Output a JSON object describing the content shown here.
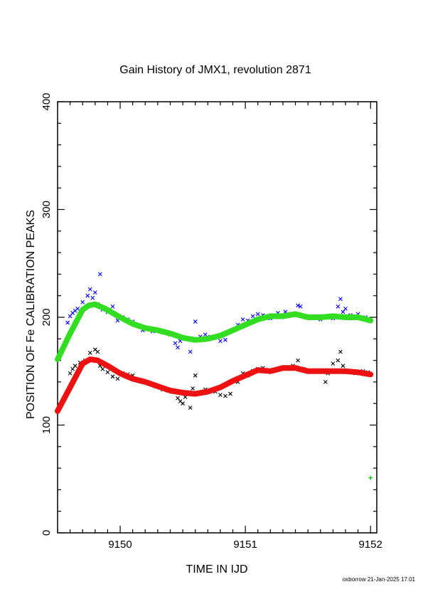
{
  "chart_data": {
    "type": "scatter",
    "title": "Gain History of JMX1, revolution 2871",
    "xlabel": "TIME IN IJD",
    "ylabel": "POSITION OF Fe CALIBRATION PEAKS",
    "xlim": [
      9149.5,
      9152.05
    ],
    "ylim": [
      0,
      400
    ],
    "x_ticks": [
      "9150",
      "9151",
      "9152"
    ],
    "y_ticks": [
      "0",
      "100",
      "200",
      "300",
      "400"
    ],
    "grid": false,
    "footer": "oxborrow 21-Jan-2025 17:01",
    "series": [
      {
        "style": "crosses",
        "color": "#0000ff",
        "points": [
          [
            9149.58,
            195
          ],
          [
            9149.6,
            201
          ],
          [
            9149.62,
            204
          ],
          [
            9149.64,
            206
          ],
          [
            9149.66,
            208
          ],
          [
            9149.7,
            214
          ],
          [
            9149.74,
            220
          ],
          [
            9149.76,
            226
          ],
          [
            9149.78,
            218
          ],
          [
            9149.8,
            223
          ],
          [
            9149.82,
            212
          ],
          [
            9149.84,
            240
          ],
          [
            9149.86,
            207
          ],
          [
            9149.9,
            205
          ],
          [
            9149.94,
            210
          ],
          [
            9149.98,
            197
          ],
          [
            9150.02,
            200
          ],
          [
            9150.06,
            198
          ],
          [
            9150.1,
            196
          ],
          [
            9150.14,
            192
          ],
          [
            9150.18,
            188
          ],
          [
            9150.22,
            190
          ],
          [
            9150.26,
            187
          ],
          [
            9150.3,
            188
          ],
          [
            9150.34,
            186
          ],
          [
            9150.4,
            184
          ],
          [
            9150.44,
            176
          ],
          [
            9150.46,
            172
          ],
          [
            9150.48,
            178
          ],
          [
            9150.52,
            180
          ],
          [
            9150.56,
            168
          ],
          [
            9150.6,
            196
          ],
          [
            9150.64,
            182
          ],
          [
            9150.68,
            184
          ],
          [
            9150.72,
            182
          ],
          [
            9150.76,
            182
          ],
          [
            9150.8,
            178
          ],
          [
            9150.84,
            179
          ],
          [
            9150.9,
            188
          ],
          [
            9150.94,
            193
          ],
          [
            9150.98,
            198
          ],
          [
            9151.02,
            197
          ],
          [
            9151.06,
            201
          ],
          [
            9151.1,
            203
          ],
          [
            9151.14,
            202
          ],
          [
            9151.2,
            199
          ],
          [
            9151.26,
            204
          ],
          [
            9151.32,
            205
          ],
          [
            9151.38,
            203
          ],
          [
            9151.42,
            211
          ],
          [
            9151.44,
            210
          ],
          [
            9151.48,
            200
          ],
          [
            9151.52,
            200
          ],
          [
            9151.56,
            199
          ],
          [
            9151.6,
            198
          ],
          [
            9151.64,
            201
          ],
          [
            9151.7,
            199
          ],
          [
            9151.74,
            210
          ],
          [
            9151.76,
            217
          ],
          [
            9151.78,
            205
          ],
          [
            9151.8,
            208
          ],
          [
            9151.84,
            202
          ],
          [
            9151.9,
            203
          ],
          [
            9151.96,
            200
          ]
        ]
      },
      {
        "style": "crosses",
        "color": "#000000",
        "points": [
          [
            9149.6,
            148
          ],
          [
            9149.62,
            152
          ],
          [
            9149.64,
            155
          ],
          [
            9149.68,
            158
          ],
          [
            9149.72,
            160
          ],
          [
            9149.76,
            167
          ],
          [
            9149.8,
            170
          ],
          [
            9149.82,
            168
          ],
          [
            9149.84,
            155
          ],
          [
            9149.86,
            152
          ],
          [
            9149.9,
            149
          ],
          [
            9149.94,
            145
          ],
          [
            9149.98,
            143
          ],
          [
            9150.02,
            148
          ],
          [
            9150.06,
            147
          ],
          [
            9150.1,
            146
          ],
          [
            9150.14,
            142
          ],
          [
            9150.18,
            140
          ],
          [
            9150.22,
            139
          ],
          [
            9150.28,
            136
          ],
          [
            9150.34,
            133
          ],
          [
            9150.38,
            132
          ],
          [
            9150.42,
            131
          ],
          [
            9150.46,
            125
          ],
          [
            9150.48,
            122
          ],
          [
            9150.5,
            120
          ],
          [
            9150.52,
            126
          ],
          [
            9150.56,
            116
          ],
          [
            9150.58,
            134
          ],
          [
            9150.6,
            146
          ],
          [
            9150.64,
            130
          ],
          [
            9150.68,
            133
          ],
          [
            9150.72,
            132
          ],
          [
            9150.76,
            131
          ],
          [
            9150.8,
            128
          ],
          [
            9150.84,
            127
          ],
          [
            9150.88,
            129
          ],
          [
            9150.94,
            140
          ],
          [
            9150.98,
            148
          ],
          [
            9151.02,
            146
          ],
          [
            9151.06,
            150
          ],
          [
            9151.1,
            152
          ],
          [
            9151.14,
            153
          ],
          [
            9151.2,
            150
          ],
          [
            9151.26,
            152
          ],
          [
            9151.32,
            153
          ],
          [
            9151.38,
            155
          ],
          [
            9151.42,
            160
          ],
          [
            9151.46,
            152
          ],
          [
            9151.52,
            150
          ],
          [
            9151.58,
            150
          ],
          [
            9151.64,
            140
          ],
          [
            9151.66,
            148
          ],
          [
            9151.7,
            157
          ],
          [
            9151.74,
            160
          ],
          [
            9151.76,
            168
          ],
          [
            9151.78,
            155
          ],
          [
            9151.82,
            150
          ],
          [
            9151.88,
            148
          ],
          [
            9151.94,
            150
          ],
          [
            9151.98,
            149
          ]
        ]
      },
      {
        "style": "plus",
        "color": "#00c000",
        "points": [
          [
            9152.0,
            51
          ]
        ]
      },
      {
        "style": "line",
        "color": "#33dd22",
        "width": 8,
        "points": [
          [
            9149.5,
            161
          ],
          [
            9149.6,
            185
          ],
          [
            9149.7,
            207
          ],
          [
            9149.75,
            211
          ],
          [
            9149.8,
            212
          ],
          [
            9149.88,
            208
          ],
          [
            9150.0,
            200
          ],
          [
            9150.1,
            194
          ],
          [
            9150.2,
            190
          ],
          [
            9150.3,
            188
          ],
          [
            9150.4,
            185
          ],
          [
            9150.5,
            181
          ],
          [
            9150.6,
            179
          ],
          [
            9150.7,
            180
          ],
          [
            9150.8,
            183
          ],
          [
            9150.9,
            188
          ],
          [
            9151.0,
            193
          ],
          [
            9151.1,
            198
          ],
          [
            9151.2,
            201
          ],
          [
            9151.3,
            201
          ],
          [
            9151.4,
            203
          ],
          [
            9151.5,
            200
          ],
          [
            9151.6,
            200
          ],
          [
            9151.7,
            201
          ],
          [
            9151.8,
            200
          ],
          [
            9151.9,
            200
          ],
          [
            9152.0,
            197
          ]
        ]
      },
      {
        "style": "line",
        "color": "#ee1111",
        "width": 8,
        "points": [
          [
            9149.5,
            113
          ],
          [
            9149.6,
            135
          ],
          [
            9149.7,
            157
          ],
          [
            9149.76,
            161
          ],
          [
            9149.82,
            160
          ],
          [
            9149.9,
            155
          ],
          [
            9150.0,
            148
          ],
          [
            9150.1,
            143
          ],
          [
            9150.2,
            140
          ],
          [
            9150.3,
            136
          ],
          [
            9150.4,
            132
          ],
          [
            9150.5,
            130
          ],
          [
            9150.6,
            129
          ],
          [
            9150.7,
            131
          ],
          [
            9150.8,
            135
          ],
          [
            9150.9,
            141
          ],
          [
            9151.0,
            146
          ],
          [
            9151.1,
            151
          ],
          [
            9151.2,
            150
          ],
          [
            9151.3,
            153
          ],
          [
            9151.4,
            153
          ],
          [
            9151.5,
            150
          ],
          [
            9151.6,
            150
          ],
          [
            9151.7,
            150
          ],
          [
            9151.8,
            150
          ],
          [
            9151.9,
            149
          ],
          [
            9152.0,
            147
          ]
        ]
      }
    ]
  }
}
